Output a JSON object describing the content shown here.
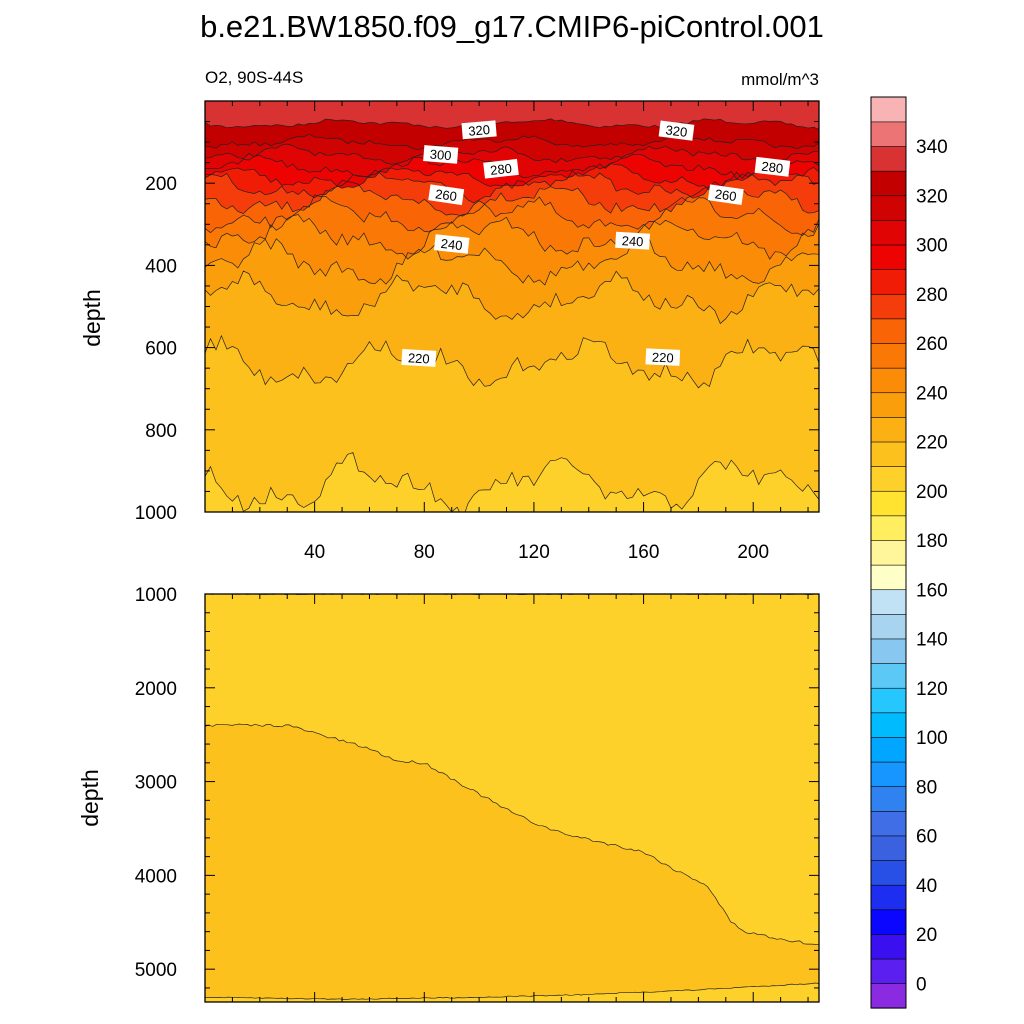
{
  "title": "b.e21.BW1850.f09_g17.CMIP6-piControl.001",
  "variable_label": "O2, 90S-44S",
  "units_label": "mmol/m^3",
  "chart_data": [
    {
      "type": "heatmap",
      "panel": "upper",
      "ylabel": "depth",
      "xlabel": "",
      "xlim": [
        0,
        224
      ],
      "ylim": [
        1000,
        0
      ],
      "x_ticks": [
        40,
        80,
        120,
        160,
        200
      ],
      "y_ticks": [
        200,
        400,
        600,
        800,
        1000
      ],
      "contours": [
        {
          "level": 330,
          "depth": 55
        },
        {
          "level": 320,
          "depth": 100
        },
        {
          "level": 310,
          "depth": 130
        },
        {
          "level": 300,
          "depth": 160
        },
        {
          "level": 290,
          "depth": 185
        },
        {
          "level": 280,
          "depth": 205
        },
        {
          "level": 270,
          "depth": 240
        },
        {
          "level": 260,
          "depth": 280
        },
        {
          "level": 250,
          "depth": 330
        },
        {
          "level": 240,
          "depth": 395
        },
        {
          "level": 230,
          "depth": 480
        },
        {
          "level": 220,
          "depth": 640
        },
        {
          "level": 210,
          "depth": 935
        }
      ],
      "contour_labels": [
        {
          "text": "320",
          "x": 100,
          "depth": 70
        },
        {
          "text": "320",
          "x": 172,
          "depth": 72
        },
        {
          "text": "300",
          "x": 86,
          "depth": 130
        },
        {
          "text": "280",
          "x": 108,
          "depth": 165
        },
        {
          "text": "280",
          "x": 207,
          "depth": 160
        },
        {
          "text": "260",
          "x": 88,
          "depth": 228
        },
        {
          "text": "260",
          "x": 190,
          "depth": 228
        },
        {
          "text": "240",
          "x": 90,
          "depth": 348
        },
        {
          "text": "240",
          "x": 156,
          "depth": 340
        },
        {
          "text": "220",
          "x": 78,
          "depth": 625
        },
        {
          "text": "220",
          "x": 167,
          "depth": 623
        }
      ]
    },
    {
      "type": "heatmap",
      "panel": "lower",
      "ylabel": "depth",
      "xlabel": "",
      "xlim": [
        0,
        224
      ],
      "ylim": [
        5350,
        1000
      ],
      "y_ticks": [
        1000,
        2000,
        3000,
        4000,
        5000
      ],
      "contours": [
        {
          "level": 200,
          "x": [
            0,
            15,
            30,
            48,
            60,
            70,
            80,
            95,
            110,
            120,
            130,
            145,
            160,
            172,
            183,
            192,
            197,
            205,
            215,
            224
          ],
          "depth": [
            2400,
            2400,
            2400,
            2550,
            2650,
            2780,
            2800,
            3050,
            3300,
            3440,
            3550,
            3650,
            3750,
            3950,
            4100,
            4500,
            4600,
            4650,
            4700,
            4750
          ]
        },
        {
          "level": 210,
          "x": [
            0,
            40,
            80,
            120,
            160,
            200,
            224
          ],
          "depth": [
            1000,
            1000,
            1000,
            1000,
            1000,
            1000,
            1000
          ]
        },
        {
          "level": 190,
          "x": [
            0,
            50,
            100,
            140,
            180,
            210,
            224
          ],
          "depth": [
            5300,
            5320,
            5300,
            5270,
            5220,
            5170,
            5150
          ]
        }
      ]
    },
    {
      "type": "colorbar",
      "levels": [
        0,
        10,
        20,
        30,
        40,
        50,
        60,
        70,
        80,
        90,
        100,
        110,
        120,
        130,
        140,
        150,
        160,
        170,
        180,
        190,
        200,
        210,
        220,
        230,
        240,
        250,
        260,
        270,
        280,
        290,
        300,
        310,
        320,
        330,
        340,
        350
      ],
      "tick_labels": [
        "0",
        "20",
        "40",
        "60",
        "80",
        "100",
        "120",
        "140",
        "160",
        "180",
        "200",
        "220",
        "240",
        "260",
        "280",
        "300",
        "320",
        "340"
      ],
      "colors": [
        "#8a2be2",
        "#5b1ff0",
        "#3a10f0",
        "#0a06ff",
        "#1e2ef0",
        "#2850e6",
        "#3a62e0",
        "#3f6ee6",
        "#2f82f0",
        "#1896ff",
        "#00a6ff",
        "#00bcff",
        "#26c6ff",
        "#5cc8f6",
        "#88c8f0",
        "#a8d4f0",
        "#c0e2f4",
        "#ffffc8",
        "#fff59a",
        "#ffee60",
        "#ffe330",
        "#fed12a",
        "#fcc11c",
        "#fbb013",
        "#fb9e0b",
        "#fb8c07",
        "#fa7806",
        "#f86406",
        "#f43d0a",
        "#f01c05",
        "#ee0303",
        "#e10404",
        "#d00303",
        "#c20000",
        "#d83232",
        "#ec7474",
        "#f8b4b4"
      ]
    }
  ]
}
